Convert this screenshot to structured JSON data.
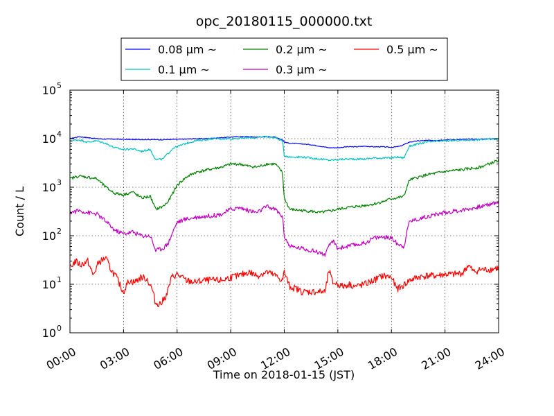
{
  "chart_data": {
    "type": "line",
    "title": "opc_20180115_000000.txt",
    "xlabel": "Time on 2018-01-15 (JST)",
    "ylabel": "Count / L",
    "xlim": [
      0,
      24
    ],
    "ylim": [
      1,
      100000
    ],
    "yscale": "log",
    "grid": true,
    "legend_position": "top-center, above plot",
    "x_ticks": [
      {
        "value": 0,
        "label": "00:00"
      },
      {
        "value": 3,
        "label": "03:00"
      },
      {
        "value": 6,
        "label": "06:00"
      },
      {
        "value": 9,
        "label": "09:00"
      },
      {
        "value": 12,
        "label": "12:00"
      },
      {
        "value": 15,
        "label": "15:00"
      },
      {
        "value": 18,
        "label": "18:00"
      },
      {
        "value": 21,
        "label": "21:00"
      },
      {
        "value": 24,
        "label": "24:00"
      }
    ],
    "y_ticks": [
      {
        "value": 1,
        "base": "10",
        "exp": "0"
      },
      {
        "value": 10,
        "base": "10",
        "exp": "1"
      },
      {
        "value": 100,
        "base": "10",
        "exp": "2"
      },
      {
        "value": 1000,
        "base": "10",
        "exp": "3"
      },
      {
        "value": 10000,
        "base": "10",
        "exp": "4"
      },
      {
        "value": 100000,
        "base": "10",
        "exp": "5"
      }
    ],
    "series": [
      {
        "name": "0.08 μm ~",
        "color": "#0000ff",
        "x": [
          0,
          0.5,
          1.0,
          1.5,
          2.0,
          2.5,
          3.0,
          3.5,
          4.0,
          4.5,
          5.0,
          5.5,
          6.0,
          6.5,
          7.0,
          7.5,
          8.0,
          8.5,
          9.0,
          9.5,
          10.0,
          10.5,
          11.0,
          11.5,
          11.9,
          12.0,
          12.3,
          12.6,
          13.0,
          13.5,
          14.0,
          14.5,
          15.0,
          15.5,
          16.0,
          16.5,
          17.0,
          17.5,
          18.0,
          18.5,
          19.0,
          19.5,
          20.0,
          20.5,
          21.0,
          21.5,
          22.0,
          22.5,
          23.0,
          23.5,
          24.0
        ],
        "y": [
          10000,
          11000,
          10500,
          10000,
          9800,
          9800,
          9700,
          9600,
          9600,
          9600,
          9500,
          9600,
          9700,
          9800,
          10000,
          10000,
          10200,
          10500,
          10800,
          11000,
          11000,
          10800,
          11000,
          10800,
          9500,
          8500,
          8000,
          8000,
          7800,
          7500,
          7000,
          6500,
          6500,
          6800,
          6800,
          7000,
          6800,
          6800,
          6600,
          7000,
          8500,
          9000,
          9200,
          9200,
          9500,
          9500,
          9700,
          9800,
          9800,
          9900,
          10000
        ]
      },
      {
        "name": "0.1 μm ~",
        "color": "#00bfbf",
        "x": [
          0,
          0.5,
          1.0,
          1.5,
          2.0,
          2.5,
          3.0,
          3.5,
          4.0,
          4.5,
          4.8,
          5.2,
          5.5,
          5.8,
          6.0,
          6.5,
          7.0,
          7.5,
          8.0,
          8.5,
          9.0,
          9.5,
          10.0,
          10.5,
          11.0,
          11.5,
          11.9,
          12.0,
          12.3,
          13.0,
          13.5,
          14.0,
          14.5,
          15.0,
          15.5,
          16.0,
          16.5,
          17.0,
          17.5,
          18.0,
          18.3,
          18.7,
          19.0,
          19.5,
          20.0,
          21.0,
          22.0,
          23.0,
          24.0
        ],
        "y": [
          9000,
          9500,
          8500,
          9000,
          8000,
          6500,
          6000,
          6200,
          5500,
          6000,
          3700,
          3800,
          5000,
          6500,
          6800,
          8000,
          9000,
          9500,
          10000,
          10000,
          10000,
          10200,
          10500,
          10500,
          11000,
          10500,
          9000,
          4500,
          4200,
          4200,
          4000,
          3800,
          3600,
          3700,
          3800,
          3800,
          3800,
          4000,
          4000,
          4000,
          4200,
          4000,
          7000,
          7800,
          8500,
          9000,
          9300,
          9600,
          10000
        ]
      },
      {
        "name": "0.2 μm ~",
        "color": "#008000",
        "x": [
          0,
          0.5,
          1.0,
          1.5,
          2.0,
          2.5,
          3.0,
          3.5,
          4.0,
          4.5,
          4.8,
          5.2,
          5.5,
          5.8,
          6.0,
          6.5,
          7.0,
          7.5,
          8.0,
          8.5,
          9.0,
          9.5,
          10.0,
          10.5,
          11.0,
          11.5,
          11.9,
          12.0,
          12.3,
          13.0,
          13.5,
          14.0,
          14.5,
          15.0,
          15.5,
          16.0,
          16.5,
          17.0,
          17.5,
          18.0,
          18.3,
          18.7,
          19.0,
          19.5,
          20.0,
          21.0,
          22.0,
          23.0,
          24.0
        ],
        "y": [
          1500,
          1700,
          1600,
          1500,
          1000,
          750,
          700,
          800,
          600,
          650,
          350,
          400,
          500,
          800,
          1100,
          1600,
          2000,
          2200,
          2400,
          2600,
          3000,
          3000,
          2700,
          2600,
          3000,
          3000,
          2000,
          600,
          350,
          330,
          320,
          300,
          320,
          350,
          380,
          400,
          420,
          450,
          500,
          580,
          600,
          650,
          1400,
          1600,
          1800,
          2100,
          2300,
          2600,
          3600
        ]
      },
      {
        "name": "0.3 μm ~",
        "color": "#bf00bf",
        "x": [
          0,
          0.5,
          1.0,
          1.5,
          2.0,
          2.5,
          3.0,
          3.5,
          4.0,
          4.5,
          4.8,
          5.2,
          5.5,
          5.8,
          6.0,
          6.5,
          7.0,
          7.5,
          8.0,
          8.5,
          9.0,
          9.5,
          10.0,
          10.5,
          11.0,
          11.5,
          11.9,
          12.0,
          12.3,
          13.0,
          13.5,
          14.0,
          14.3,
          14.5,
          14.7,
          15.0,
          15.5,
          16.0,
          16.5,
          17.0,
          17.5,
          18.0,
          18.3,
          18.7,
          19.0,
          19.5,
          20.0,
          21.0,
          22.0,
          23.0,
          24.0
        ],
        "y": [
          300,
          330,
          300,
          280,
          200,
          130,
          110,
          120,
          100,
          100,
          50,
          55,
          70,
          130,
          190,
          220,
          240,
          250,
          260,
          280,
          350,
          380,
          330,
          300,
          400,
          350,
          250,
          100,
          60,
          55,
          50,
          45,
          40,
          60,
          80,
          55,
          60,
          65,
          70,
          90,
          95,
          90,
          70,
          60,
          200,
          220,
          250,
          300,
          340,
          400,
          500
        ]
      },
      {
        "name": "0.5 μm ~",
        "color": "#ff0000",
        "x": [
          0,
          0.3,
          0.6,
          1.0,
          1.3,
          1.6,
          2.0,
          2.3,
          2.6,
          2.9,
          3.0,
          3.3,
          3.6,
          4.0,
          4.3,
          4.6,
          4.8,
          5.1,
          5.4,
          5.7,
          6.0,
          6.5,
          7.0,
          7.5,
          8.0,
          8.5,
          9.0,
          9.5,
          10.0,
          10.5,
          11.0,
          11.5,
          11.9,
          12.0,
          12.3,
          12.7,
          13.0,
          13.5,
          14.0,
          14.3,
          14.5,
          14.7,
          15.0,
          15.3,
          15.6,
          16.0,
          16.5,
          17.0,
          17.5,
          18.0,
          18.3,
          18.6,
          19.0,
          19.5,
          20.0,
          20.5,
          21.0,
          21.5,
          22.0,
          22.3,
          22.6,
          23.0,
          23.5,
          24.0
        ],
        "y": [
          22,
          30,
          25,
          30,
          15,
          28,
          35,
          20,
          14,
          8,
          7,
          12,
          11,
          14,
          13,
          8,
          4,
          4,
          6,
          14,
          16,
          12,
          11,
          12,
          12,
          12,
          14,
          15,
          18,
          15,
          18,
          15,
          12,
          18,
          9,
          8,
          7,
          7,
          7,
          7,
          20,
          11,
          10,
          9,
          10,
          9,
          10,
          12,
          15,
          14,
          8,
          9,
          12,
          14,
          15,
          15,
          16,
          16,
          17,
          25,
          18,
          20,
          20,
          22
        ]
      }
    ]
  }
}
